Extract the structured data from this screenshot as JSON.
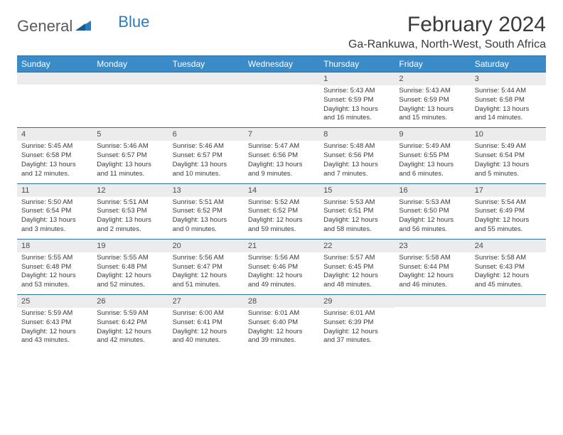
{
  "brand": {
    "general": "General",
    "blue": "Blue"
  },
  "header": {
    "month_title": "February 2024",
    "location": "Ga-Rankuwa, North-West, South Africa"
  },
  "colors": {
    "header_bg": "#3b8bc8",
    "header_text": "#ffffff",
    "border": "#2b6fa3",
    "daynum_bg": "#ececec",
    "body_text": "#3a3a3a",
    "brand_grey": "#5a5a5a",
    "brand_blue": "#2b7bbf"
  },
  "day_names": [
    "Sunday",
    "Monday",
    "Tuesday",
    "Wednesday",
    "Thursday",
    "Friday",
    "Saturday"
  ],
  "weeks": [
    [
      {
        "n": "",
        "sr": "",
        "ss": "",
        "dl1": "",
        "dl2": ""
      },
      {
        "n": "",
        "sr": "",
        "ss": "",
        "dl1": "",
        "dl2": ""
      },
      {
        "n": "",
        "sr": "",
        "ss": "",
        "dl1": "",
        "dl2": ""
      },
      {
        "n": "",
        "sr": "",
        "ss": "",
        "dl1": "",
        "dl2": ""
      },
      {
        "n": "1",
        "sr": "Sunrise: 5:43 AM",
        "ss": "Sunset: 6:59 PM",
        "dl1": "Daylight: 13 hours",
        "dl2": "and 16 minutes."
      },
      {
        "n": "2",
        "sr": "Sunrise: 5:43 AM",
        "ss": "Sunset: 6:59 PM",
        "dl1": "Daylight: 13 hours",
        "dl2": "and 15 minutes."
      },
      {
        "n": "3",
        "sr": "Sunrise: 5:44 AM",
        "ss": "Sunset: 6:58 PM",
        "dl1": "Daylight: 13 hours",
        "dl2": "and 14 minutes."
      }
    ],
    [
      {
        "n": "4",
        "sr": "Sunrise: 5:45 AM",
        "ss": "Sunset: 6:58 PM",
        "dl1": "Daylight: 13 hours",
        "dl2": "and 12 minutes."
      },
      {
        "n": "5",
        "sr": "Sunrise: 5:46 AM",
        "ss": "Sunset: 6:57 PM",
        "dl1": "Daylight: 13 hours",
        "dl2": "and 11 minutes."
      },
      {
        "n": "6",
        "sr": "Sunrise: 5:46 AM",
        "ss": "Sunset: 6:57 PM",
        "dl1": "Daylight: 13 hours",
        "dl2": "and 10 minutes."
      },
      {
        "n": "7",
        "sr": "Sunrise: 5:47 AM",
        "ss": "Sunset: 6:56 PM",
        "dl1": "Daylight: 13 hours",
        "dl2": "and 9 minutes."
      },
      {
        "n": "8",
        "sr": "Sunrise: 5:48 AM",
        "ss": "Sunset: 6:56 PM",
        "dl1": "Daylight: 13 hours",
        "dl2": "and 7 minutes."
      },
      {
        "n": "9",
        "sr": "Sunrise: 5:49 AM",
        "ss": "Sunset: 6:55 PM",
        "dl1": "Daylight: 13 hours",
        "dl2": "and 6 minutes."
      },
      {
        "n": "10",
        "sr": "Sunrise: 5:49 AM",
        "ss": "Sunset: 6:54 PM",
        "dl1": "Daylight: 13 hours",
        "dl2": "and 5 minutes."
      }
    ],
    [
      {
        "n": "11",
        "sr": "Sunrise: 5:50 AM",
        "ss": "Sunset: 6:54 PM",
        "dl1": "Daylight: 13 hours",
        "dl2": "and 3 minutes."
      },
      {
        "n": "12",
        "sr": "Sunrise: 5:51 AM",
        "ss": "Sunset: 6:53 PM",
        "dl1": "Daylight: 13 hours",
        "dl2": "and 2 minutes."
      },
      {
        "n": "13",
        "sr": "Sunrise: 5:51 AM",
        "ss": "Sunset: 6:52 PM",
        "dl1": "Daylight: 13 hours",
        "dl2": "and 0 minutes."
      },
      {
        "n": "14",
        "sr": "Sunrise: 5:52 AM",
        "ss": "Sunset: 6:52 PM",
        "dl1": "Daylight: 12 hours",
        "dl2": "and 59 minutes."
      },
      {
        "n": "15",
        "sr": "Sunrise: 5:53 AM",
        "ss": "Sunset: 6:51 PM",
        "dl1": "Daylight: 12 hours",
        "dl2": "and 58 minutes."
      },
      {
        "n": "16",
        "sr": "Sunrise: 5:53 AM",
        "ss": "Sunset: 6:50 PM",
        "dl1": "Daylight: 12 hours",
        "dl2": "and 56 minutes."
      },
      {
        "n": "17",
        "sr": "Sunrise: 5:54 AM",
        "ss": "Sunset: 6:49 PM",
        "dl1": "Daylight: 12 hours",
        "dl2": "and 55 minutes."
      }
    ],
    [
      {
        "n": "18",
        "sr": "Sunrise: 5:55 AM",
        "ss": "Sunset: 6:48 PM",
        "dl1": "Daylight: 12 hours",
        "dl2": "and 53 minutes."
      },
      {
        "n": "19",
        "sr": "Sunrise: 5:55 AM",
        "ss": "Sunset: 6:48 PM",
        "dl1": "Daylight: 12 hours",
        "dl2": "and 52 minutes."
      },
      {
        "n": "20",
        "sr": "Sunrise: 5:56 AM",
        "ss": "Sunset: 6:47 PM",
        "dl1": "Daylight: 12 hours",
        "dl2": "and 51 minutes."
      },
      {
        "n": "21",
        "sr": "Sunrise: 5:56 AM",
        "ss": "Sunset: 6:46 PM",
        "dl1": "Daylight: 12 hours",
        "dl2": "and 49 minutes."
      },
      {
        "n": "22",
        "sr": "Sunrise: 5:57 AM",
        "ss": "Sunset: 6:45 PM",
        "dl1": "Daylight: 12 hours",
        "dl2": "and 48 minutes."
      },
      {
        "n": "23",
        "sr": "Sunrise: 5:58 AM",
        "ss": "Sunset: 6:44 PM",
        "dl1": "Daylight: 12 hours",
        "dl2": "and 46 minutes."
      },
      {
        "n": "24",
        "sr": "Sunrise: 5:58 AM",
        "ss": "Sunset: 6:43 PM",
        "dl1": "Daylight: 12 hours",
        "dl2": "and 45 minutes."
      }
    ],
    [
      {
        "n": "25",
        "sr": "Sunrise: 5:59 AM",
        "ss": "Sunset: 6:43 PM",
        "dl1": "Daylight: 12 hours",
        "dl2": "and 43 minutes."
      },
      {
        "n": "26",
        "sr": "Sunrise: 5:59 AM",
        "ss": "Sunset: 6:42 PM",
        "dl1": "Daylight: 12 hours",
        "dl2": "and 42 minutes."
      },
      {
        "n": "27",
        "sr": "Sunrise: 6:00 AM",
        "ss": "Sunset: 6:41 PM",
        "dl1": "Daylight: 12 hours",
        "dl2": "and 40 minutes."
      },
      {
        "n": "28",
        "sr": "Sunrise: 6:01 AM",
        "ss": "Sunset: 6:40 PM",
        "dl1": "Daylight: 12 hours",
        "dl2": "and 39 minutes."
      },
      {
        "n": "29",
        "sr": "Sunrise: 6:01 AM",
        "ss": "Sunset: 6:39 PM",
        "dl1": "Daylight: 12 hours",
        "dl2": "and 37 minutes."
      },
      {
        "n": "",
        "sr": "",
        "ss": "",
        "dl1": "",
        "dl2": ""
      },
      {
        "n": "",
        "sr": "",
        "ss": "",
        "dl1": "",
        "dl2": ""
      }
    ]
  ]
}
